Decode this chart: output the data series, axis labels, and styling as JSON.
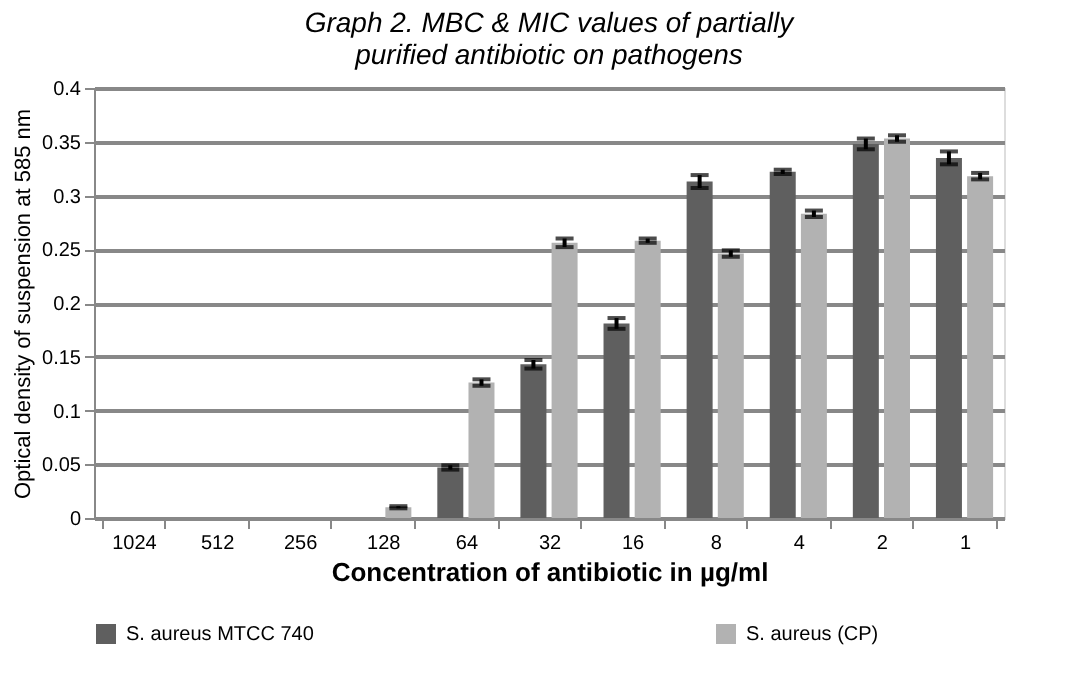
{
  "chart_data": {
    "type": "bar",
    "title": "Graph 2. MBC & MIC values of partially purified antibiotic on pathogens",
    "xlabel": "Concentration of antibiotic  in  µg/ml",
    "ylabel": "Optical density of suspension at 585 nm",
    "categories": [
      "1024",
      "512",
      "256",
      "128",
      "64",
      "32",
      "16",
      "8",
      "4",
      "2",
      "1"
    ],
    "series": [
      {
        "name": "S. aureus MTCC 740",
        "color": "#5f5f5f",
        "values": [
          0,
          0,
          0,
          0,
          0.047,
          0.143,
          0.181,
          0.313,
          0.322,
          0.348,
          0.335
        ],
        "errors": [
          null,
          null,
          null,
          null,
          0.002,
          0.004,
          0.005,
          0.006,
          0.002,
          0.005,
          0.006
        ]
      },
      {
        "name": "S. aureus (CP)",
        "color": "#b2b2b2",
        "values": [
          0,
          0,
          0,
          0.01,
          0.126,
          0.256,
          0.258,
          0.246,
          0.283,
          0.353,
          0.318
        ],
        "errors": [
          null,
          null,
          null,
          0.001,
          0.003,
          0.004,
          0.002,
          0.003,
          0.003,
          0.003,
          0.003
        ]
      }
    ],
    "ylim": [
      0,
      0.4
    ],
    "yticks": [
      0,
      0.05,
      0.1,
      0.15,
      0.2,
      0.25,
      0.3,
      0.35,
      0.4
    ],
    "grid": "y",
    "legend": "bottom"
  }
}
